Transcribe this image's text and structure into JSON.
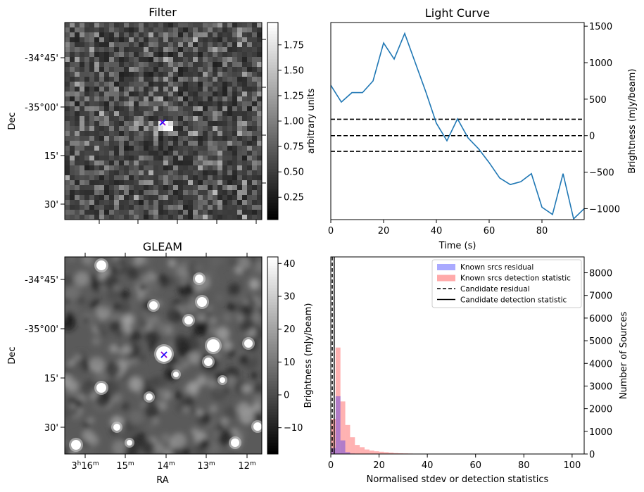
{
  "chart_data": [
    {
      "panel": "filter",
      "type": "heatmap",
      "title": "Filter",
      "ylabel": "Dec",
      "yticks": [
        "-34°45'",
        "-35°00'",
        "15'",
        "30'"
      ],
      "colorbar": {
        "label": "arbitrary units",
        "range": [
          0.03,
          1.97
        ],
        "ticks": [
          "0.25",
          "0.50",
          "0.75",
          "1.00",
          "1.25",
          "1.50",
          "1.75"
        ],
        "tick_values": [
          0.25,
          0.5,
          0.75,
          1.0,
          1.25,
          1.5,
          1.75
        ]
      },
      "marker": "x",
      "grid_size": 40
    },
    {
      "panel": "light_curve",
      "type": "line",
      "title": "Light Curve",
      "xlabel": "Time (s)",
      "ylabel": "Brightness (mJy/beam)",
      "xlim": [
        0,
        96
      ],
      "ylim": [
        -1150,
        1550
      ],
      "xticks": [
        0,
        20,
        40,
        60,
        80
      ],
      "yticks": [
        -1000,
        -500,
        0,
        500,
        1000,
        1500
      ],
      "x": [
        0,
        4,
        8,
        12,
        16,
        20,
        24,
        28,
        32,
        36,
        40,
        44,
        48,
        52,
        56,
        60,
        64,
        68,
        72,
        76,
        80,
        84,
        88,
        92,
        96
      ],
      "values": [
        690,
        460,
        590,
        590,
        750,
        1270,
        1050,
        1400,
        1000,
        600,
        170,
        -70,
        230,
        -30,
        -180,
        -370,
        -580,
        -670,
        -630,
        -520,
        -980,
        -1080,
        -520,
        -1140,
        -1000
      ],
      "hlines": [
        225,
        0,
        -215
      ],
      "line_color": "#1f77b4"
    },
    {
      "panel": "gleam",
      "type": "heatmap",
      "title": "GLEAM",
      "xlabel": "RA",
      "ylabel": "Dec",
      "xticks": [
        "3h16m",
        "15m",
        "14m",
        "13m",
        "12m"
      ],
      "yticks": [
        "-34°45'",
        "-35°00'",
        "15'",
        "30'"
      ],
      "colorbar": {
        "label": "Brightness (mJy/beam)",
        "range": [
          -18,
          42
        ],
        "ticks": [
          "−10",
          "0",
          "10",
          "20",
          "30",
          "40"
        ],
        "tick_values": [
          -10,
          0,
          10,
          20,
          30,
          40
        ]
      },
      "marker": "x"
    },
    {
      "panel": "histogram",
      "type": "bar",
      "xlabel": "Normalised stdev or detection statistics",
      "ylabel": "Number of Sources",
      "xlim": [
        0,
        105
      ],
      "ylim": [
        0,
        8700
      ],
      "xticks": [
        0,
        20,
        40,
        60,
        80,
        100
      ],
      "yticks": [
        0,
        1000,
        2000,
        3000,
        4000,
        5000,
        6000,
        7000,
        8000
      ],
      "bin_width": 2,
      "series": [
        {
          "name": "Known srcs residual",
          "color": "#0000ff",
          "values": [
            260,
            2550,
            600,
            80,
            20
          ]
        },
        {
          "name": "Known srcs detection statistic",
          "color": "#ff0000",
          "values": [
            1550,
            4700,
            2320,
            1280,
            740,
            400,
            300,
            200,
            150,
            120,
            100,
            80,
            60,
            40,
            30,
            25,
            20,
            15,
            12,
            10,
            8,
            6,
            5,
            4,
            3,
            3,
            2,
            2,
            1,
            1
          ]
        }
      ],
      "candidate_residual": 0.6,
      "candidate_detection_statistic": 1.4,
      "legend": [
        {
          "label": "Known srcs residual",
          "style": "patch",
          "color": "#aaaaff"
        },
        {
          "label": "Known srcs detection statistic",
          "style": "patch",
          "color": "#ffaaaa"
        },
        {
          "label": "Candidate residual",
          "style": "dashed"
        },
        {
          "label": "Candidate detection statistic",
          "style": "solid"
        }
      ]
    }
  ]
}
